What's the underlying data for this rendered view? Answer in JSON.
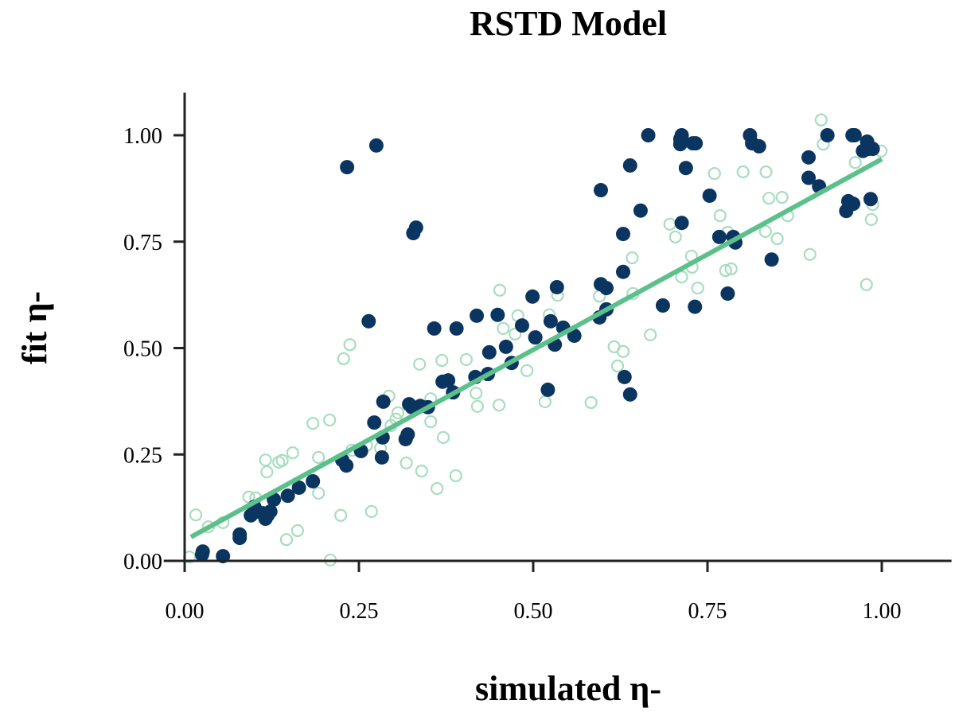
{
  "chart_data": {
    "type": "scatter",
    "title": "RSTD Model",
    "xlabel": "simulated η-",
    "ylabel": "fit η-",
    "xlim": [
      -0.03,
      1.1
    ],
    "ylim": [
      0,
      1.1
    ],
    "xticks": [
      0.0,
      0.25,
      0.5,
      0.75,
      1.0
    ],
    "yticks": [
      0.0,
      0.25,
      0.5,
      0.75,
      1.0
    ],
    "xtick_labels": [
      "0.00",
      "0.25",
      "0.50",
      "0.75",
      "1.00"
    ],
    "ytick_labels": [
      "0.00",
      "0.25",
      "0.50",
      "0.75",
      "1.00"
    ],
    "grid": false,
    "colors": {
      "filled": "#0b3561",
      "open": "#a8ddbf",
      "fit_line": "#5cc08a",
      "axis": "#222222"
    },
    "fit_line": {
      "x": [
        0.009,
        1.0
      ],
      "y": [
        0.056,
        0.944
      ]
    },
    "series": [
      {
        "style": "open",
        "points": [
          [
            0.007,
            0.009
          ],
          [
            0.016,
            0.108
          ],
          [
            0.034,
            0.08
          ],
          [
            0.055,
            0.09
          ],
          [
            0.092,
            0.15
          ],
          [
            0.102,
            0.148
          ],
          [
            0.116,
            0.237
          ],
          [
            0.118,
            0.209
          ],
          [
            0.135,
            0.232
          ],
          [
            0.14,
            0.236
          ],
          [
            0.155,
            0.254
          ],
          [
            0.146,
            0.05
          ],
          [
            0.162,
            0.071
          ],
          [
            0.184,
            0.323
          ],
          [
            0.192,
            0.243
          ],
          [
            0.192,
            0.159
          ],
          [
            0.209,
            0.002
          ],
          [
            0.208,
            0.331
          ],
          [
            0.224,
            0.107
          ],
          [
            0.228,
            0.475
          ],
          [
            0.237,
            0.508
          ],
          [
            0.24,
            0.26
          ],
          [
            0.268,
            0.116
          ],
          [
            0.261,
            0.271
          ],
          [
            0.281,
            0.265
          ],
          [
            0.293,
            0.387
          ],
          [
            0.296,
            0.318
          ],
          [
            0.303,
            0.333
          ],
          [
            0.306,
            0.348
          ],
          [
            0.318,
            0.23
          ],
          [
            0.337,
            0.462
          ],
          [
            0.34,
            0.211
          ],
          [
            0.353,
            0.327
          ],
          [
            0.353,
            0.381
          ],
          [
            0.362,
            0.17
          ],
          [
            0.369,
            0.471
          ],
          [
            0.371,
            0.29
          ],
          [
            0.386,
            0.394
          ],
          [
            0.389,
            0.2
          ],
          [
            0.404,
            0.473
          ],
          [
            0.418,
            0.394
          ],
          [
            0.42,
            0.363
          ],
          [
            0.452,
            0.636
          ],
          [
            0.451,
            0.366
          ],
          [
            0.457,
            0.546
          ],
          [
            0.474,
            0.533
          ],
          [
            0.478,
            0.576
          ],
          [
            0.491,
            0.447
          ],
          [
            0.517,
            0.374
          ],
          [
            0.523,
            0.578
          ],
          [
            0.535,
            0.624
          ],
          [
            0.583,
            0.372
          ],
          [
            0.595,
            0.622
          ],
          [
            0.616,
            0.503
          ],
          [
            0.621,
            0.458
          ],
          [
            0.629,
            0.492
          ],
          [
            0.642,
            0.712
          ],
          [
            0.643,
            0.628
          ],
          [
            0.668,
            0.531
          ],
          [
            0.696,
            0.791
          ],
          [
            0.704,
            0.761
          ],
          [
            0.713,
            0.667
          ],
          [
            0.727,
            0.716
          ],
          [
            0.728,
            0.69
          ],
          [
            0.736,
            0.641
          ],
          [
            0.76,
            0.91
          ],
          [
            0.768,
            0.811
          ],
          [
            0.779,
            0.772
          ],
          [
            0.776,
            0.682
          ],
          [
            0.784,
            0.686
          ],
          [
            0.801,
            0.914
          ],
          [
            0.834,
            0.914
          ],
          [
            0.838,
            0.852
          ],
          [
            0.833,
            0.774
          ],
          [
            0.85,
            0.757
          ],
          [
            0.857,
            0.854
          ],
          [
            0.865,
            0.811
          ],
          [
            0.897,
            0.72
          ],
          [
            0.913,
            1.036
          ],
          [
            0.916,
            0.979
          ],
          [
            0.962,
            0.936
          ],
          [
            0.978,
            0.649
          ],
          [
            0.985,
            0.802
          ],
          [
            0.999,
            0.963
          ],
          [
            0.987,
            0.837
          ]
        ]
      },
      {
        "style": "filled",
        "points": [
          [
            0.026,
            0.022
          ],
          [
            0.025,
            0.015
          ],
          [
            0.055,
            0.011
          ],
          [
            0.079,
            0.054
          ],
          [
            0.079,
            0.062
          ],
          [
            0.095,
            0.107
          ],
          [
            0.1,
            0.127
          ],
          [
            0.104,
            0.116
          ],
          [
            0.112,
            0.112
          ],
          [
            0.116,
            0.099
          ],
          [
            0.119,
            0.107
          ],
          [
            0.123,
            0.116
          ],
          [
            0.128,
            0.144
          ],
          [
            0.148,
            0.153
          ],
          [
            0.164,
            0.172
          ],
          [
            0.184,
            0.187
          ],
          [
            0.226,
            0.237
          ],
          [
            0.232,
            0.224
          ],
          [
            0.253,
            0.258
          ],
          [
            0.283,
            0.243
          ],
          [
            0.284,
            0.29
          ],
          [
            0.272,
            0.325
          ],
          [
            0.285,
            0.374
          ],
          [
            0.317,
            0.286
          ],
          [
            0.32,
            0.297
          ],
          [
            0.322,
            0.368
          ],
          [
            0.326,
            0.361
          ],
          [
            0.338,
            0.364
          ],
          [
            0.349,
            0.361
          ],
          [
            0.358,
            0.546
          ],
          [
            0.37,
            0.421
          ],
          [
            0.378,
            0.424
          ],
          [
            0.385,
            0.396
          ],
          [
            0.39,
            0.546
          ],
          [
            0.417,
            0.432
          ],
          [
            0.419,
            0.576
          ],
          [
            0.435,
            0.439
          ],
          [
            0.437,
            0.49
          ],
          [
            0.449,
            0.578
          ],
          [
            0.461,
            0.503
          ],
          [
            0.469,
            0.465
          ],
          [
            0.484,
            0.553
          ],
          [
            0.499,
            0.621
          ],
          [
            0.503,
            0.525
          ],
          [
            0.521,
            0.402
          ],
          [
            0.525,
            0.563
          ],
          [
            0.531,
            0.508
          ],
          [
            0.534,
            0.643
          ],
          [
            0.543,
            0.548
          ],
          [
            0.559,
            0.529
          ],
          [
            0.595,
            0.572
          ],
          [
            0.597,
            0.65
          ],
          [
            0.605,
            0.641
          ],
          [
            0.597,
            0.871
          ],
          [
            0.605,
            0.591
          ],
          [
            0.629,
            0.768
          ],
          [
            0.629,
            0.679
          ],
          [
            0.631,
            0.432
          ],
          [
            0.639,
            0.391
          ],
          [
            0.639,
            0.929
          ],
          [
            0.654,
            0.823
          ],
          [
            0.686,
            0.6
          ],
          [
            0.711,
            0.991
          ],
          [
            0.713,
            1.0
          ],
          [
            0.711,
            0.979
          ],
          [
            0.719,
            0.923
          ],
          [
            0.713,
            0.794
          ],
          [
            0.733,
            0.981
          ],
          [
            0.732,
            0.597
          ],
          [
            0.729,
            0.981
          ],
          [
            0.753,
            0.858
          ],
          [
            0.767,
            0.761
          ],
          [
            0.779,
            0.628
          ],
          [
            0.787,
            0.761
          ],
          [
            0.79,
            0.748
          ],
          [
            0.811,
            1.0
          ],
          [
            0.814,
            0.981
          ],
          [
            0.824,
            0.974
          ],
          [
            0.842,
            0.708
          ],
          [
            0.895,
            0.948
          ],
          [
            0.895,
            0.9
          ],
          [
            0.91,
            0.88
          ],
          [
            0.922,
            1.0
          ],
          [
            0.949,
            0.822
          ],
          [
            0.952,
            0.845
          ],
          [
            0.958,
            1.0
          ],
          [
            0.961,
            1.0
          ],
          [
            0.959,
            0.839
          ],
          [
            0.973,
            0.963
          ],
          [
            0.979,
            0.985
          ],
          [
            0.981,
            0.968
          ],
          [
            0.987,
            0.968
          ],
          [
            0.984,
            0.85
          ],
          [
            0.264,
            0.563
          ],
          [
            0.233,
            0.925
          ],
          [
            0.275,
            0.976
          ],
          [
            0.328,
            0.77
          ],
          [
            0.332,
            0.783
          ],
          [
            0.665,
            1.0
          ]
        ]
      }
    ]
  }
}
